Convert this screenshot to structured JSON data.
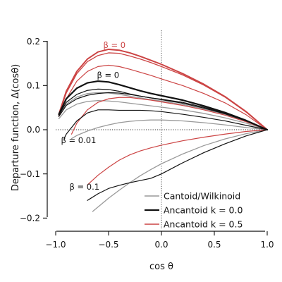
{
  "chart_data": {
    "type": "line",
    "xlabel": "cos θ",
    "ylabel": "Departure function, Δ(cosθ)",
    "xlim": [
      -1.08,
      1.08
    ],
    "ylim": [
      -0.225,
      0.225
    ],
    "xticks": [
      -1.0,
      -0.5,
      0.0,
      0.5,
      1.0
    ],
    "xtick_labels": [
      "−1.0",
      "−0.5",
      "0.0",
      "0.5",
      "1.0"
    ],
    "yticks": [
      -0.2,
      -0.1,
      0.0,
      0.1,
      0.2
    ],
    "ytick_labels": [
      "−0.2",
      "−0.1",
      "0.0",
      "0.1",
      "0.2"
    ],
    "reference_lines": {
      "y": 0.0,
      "x": 0.0,
      "style": "dotted"
    },
    "legend": {
      "position": "lower-right",
      "entries": [
        {
          "label": "Cantoid/Wilkinoid",
          "color": "#999999",
          "width": 1.6
        },
        {
          "label": "Ancantoid k = 0.0",
          "color": "#111111",
          "width": 2.2
        },
        {
          "label": "Ancantoid k = 0.5",
          "color": "#cc4444",
          "width": 1.6
        }
      ]
    },
    "annotations": [
      {
        "text": "β = 0",
        "x": -0.55,
        "y": 0.185,
        "color": "#cc4444"
      },
      {
        "text": "β = 0",
        "x": -0.61,
        "y": 0.117,
        "color": "#111111"
      },
      {
        "text": "β = 0.01",
        "x": -0.95,
        "y": -0.03,
        "color": "#111111"
      },
      {
        "text": "β = 0.1",
        "x": -0.87,
        "y": -0.136,
        "color": "#111111"
      }
    ],
    "series": [
      {
        "color": "#cc4444",
        "width": 2.0,
        "x": [
          -0.97,
          -0.9,
          -0.8,
          -0.7,
          -0.6,
          -0.5,
          -0.4,
          -0.3,
          -0.2,
          -0.1,
          0.0,
          0.2,
          0.4,
          0.6,
          0.8,
          1.0
        ],
        "y": [
          0.035,
          0.087,
          0.132,
          0.16,
          0.176,
          0.182,
          0.18,
          0.174,
          0.166,
          0.157,
          0.148,
          0.127,
          0.103,
          0.075,
          0.041,
          0.0
        ]
      },
      {
        "color": "#cc4444",
        "width": 1.3,
        "x": [
          -0.97,
          -0.9,
          -0.8,
          -0.7,
          -0.6,
          -0.5,
          -0.4,
          -0.3,
          -0.2,
          -0.1,
          0.0,
          0.2,
          0.4,
          0.6,
          0.8,
          1.0
        ],
        "y": [
          0.033,
          0.083,
          0.127,
          0.154,
          0.168,
          0.174,
          0.173,
          0.167,
          0.16,
          0.152,
          0.143,
          0.124,
          0.101,
          0.074,
          0.04,
          0.0
        ]
      },
      {
        "color": "#cc4444",
        "width": 1.2,
        "x": [
          -0.97,
          -0.9,
          -0.8,
          -0.7,
          -0.6,
          -0.5,
          -0.4,
          -0.3,
          -0.2,
          -0.1,
          0.0,
          0.2,
          0.4,
          0.6,
          0.8,
          1.0
        ],
        "y": [
          0.03,
          0.07,
          0.11,
          0.132,
          0.143,
          0.146,
          0.143,
          0.137,
          0.13,
          0.123,
          0.115,
          0.1,
          0.082,
          0.061,
          0.034,
          0.0
        ]
      },
      {
        "color": "#cc4444",
        "width": 1.2,
        "x": [
          -0.85,
          -0.8,
          -0.7,
          -0.6,
          -0.5,
          -0.4,
          -0.3,
          -0.2,
          -0.1,
          0.0,
          0.2,
          0.4,
          0.6,
          0.8,
          1.0
        ],
        "y": [
          -0.01,
          0.015,
          0.045,
          0.062,
          0.07,
          0.073,
          0.073,
          0.07,
          0.067,
          0.063,
          0.055,
          0.045,
          0.033,
          0.018,
          0.0
        ]
      },
      {
        "color": "#cc4444",
        "width": 1.2,
        "x": [
          -0.7,
          -0.6,
          -0.5,
          -0.4,
          -0.3,
          -0.2,
          -0.1,
          0.0,
          0.2,
          0.4,
          0.6,
          0.8,
          1.0
        ],
        "y": [
          -0.125,
          -0.103,
          -0.085,
          -0.069,
          -0.057,
          -0.048,
          -0.041,
          -0.035,
          -0.025,
          -0.017,
          -0.01,
          -0.004,
          0.0
        ]
      },
      {
        "color": "#111111",
        "width": 2.2,
        "x": [
          -0.97,
          -0.9,
          -0.8,
          -0.7,
          -0.6,
          -0.5,
          -0.4,
          -0.3,
          -0.2,
          -0.1,
          0.0,
          0.2,
          0.4,
          0.6,
          0.8,
          1.0
        ],
        "y": [
          0.035,
          0.07,
          0.094,
          0.106,
          0.11,
          0.108,
          0.102,
          0.095,
          0.088,
          0.082,
          0.077,
          0.067,
          0.054,
          0.039,
          0.021,
          0.0
        ]
      },
      {
        "color": "#111111",
        "width": 1.2,
        "x": [
          -0.97,
          -0.9,
          -0.8,
          -0.7,
          -0.6,
          -0.5,
          -0.4,
          -0.3,
          -0.2,
          -0.1,
          0.0,
          0.2,
          0.4,
          0.6,
          0.8,
          1.0
        ],
        "y": [
          0.033,
          0.062,
          0.08,
          0.089,
          0.092,
          0.091,
          0.087,
          0.081,
          0.076,
          0.072,
          0.069,
          0.062,
          0.051,
          0.037,
          0.02,
          0.0
        ]
      },
      {
        "color": "#111111",
        "width": 1.2,
        "x": [
          -0.97,
          -0.9,
          -0.8,
          -0.7,
          -0.6,
          -0.5,
          -0.4,
          -0.3,
          -0.2,
          -0.1,
          0.0,
          0.2,
          0.4,
          0.6,
          0.8,
          1.0
        ],
        "y": [
          0.03,
          0.055,
          0.07,
          0.078,
          0.082,
          0.084,
          0.083,
          0.08,
          0.076,
          0.072,
          0.068,
          0.06,
          0.049,
          0.036,
          0.02,
          0.0
        ]
      },
      {
        "color": "#111111",
        "width": 1.2,
        "x": [
          -0.92,
          -0.9,
          -0.8,
          -0.7,
          -0.6,
          -0.5,
          -0.4,
          -0.3,
          -0.2,
          -0.1,
          0.0,
          0.2,
          0.4,
          0.6,
          0.8,
          1.0
        ],
        "y": [
          -0.02,
          -0.01,
          0.02,
          0.038,
          0.045,
          0.045,
          0.044,
          0.044,
          0.044,
          0.043,
          0.041,
          0.035,
          0.028,
          0.02,
          0.01,
          0.0
        ]
      },
      {
        "color": "#111111",
        "width": 1.2,
        "x": [
          -0.7,
          -0.6,
          -0.5,
          -0.4,
          -0.3,
          -0.2,
          -0.1,
          0.0,
          0.2,
          0.4,
          0.6,
          0.8,
          1.0
        ],
        "y": [
          -0.16,
          -0.145,
          -0.133,
          -0.126,
          -0.12,
          -0.115,
          -0.11,
          -0.1,
          -0.075,
          -0.052,
          -0.032,
          -0.014,
          0.0
        ]
      },
      {
        "color": "#999999",
        "width": 1.3,
        "x": [
          -0.97,
          -0.9,
          -0.8,
          -0.7,
          -0.6,
          -0.5,
          -0.4,
          -0.3,
          -0.2,
          -0.1,
          0.0,
          0.2,
          0.4,
          0.6,
          0.8,
          1.0
        ],
        "y": [
          0.032,
          0.058,
          0.074,
          0.082,
          0.084,
          0.083,
          0.08,
          0.076,
          0.072,
          0.068,
          0.065,
          0.057,
          0.047,
          0.035,
          0.019,
          0.0
        ]
      },
      {
        "color": "#999999",
        "width": 1.3,
        "x": [
          -0.97,
          -0.9,
          -0.8,
          -0.7,
          -0.6,
          -0.5,
          -0.4,
          -0.3,
          -0.2,
          -0.1,
          0.0,
          0.2,
          0.4,
          0.6,
          0.8,
          1.0
        ],
        "y": [
          0.025,
          0.045,
          0.058,
          0.064,
          0.066,
          0.065,
          0.063,
          0.06,
          0.057,
          0.054,
          0.051,
          0.045,
          0.037,
          0.027,
          0.015,
          0.0
        ]
      },
      {
        "color": "#999999",
        "width": 1.3,
        "x": [
          -0.85,
          -0.8,
          -0.7,
          -0.6,
          -0.5,
          -0.4,
          -0.3,
          -0.2,
          -0.1,
          0.0,
          0.2,
          0.4,
          0.6,
          0.8,
          1.0
        ],
        "y": [
          -0.02,
          -0.013,
          -0.003,
          0.005,
          0.011,
          0.016,
          0.019,
          0.021,
          0.022,
          0.022,
          0.02,
          0.016,
          0.011,
          0.005,
          0.0
        ]
      },
      {
        "color": "#999999",
        "width": 1.3,
        "x": [
          -0.65,
          -0.6,
          -0.5,
          -0.4,
          -0.3,
          -0.2,
          -0.1,
          0.0,
          0.2,
          0.4,
          0.6,
          0.8,
          1.0
        ],
        "y": [
          -0.185,
          -0.175,
          -0.155,
          -0.137,
          -0.12,
          -0.104,
          -0.09,
          -0.077,
          -0.055,
          -0.036,
          -0.021,
          -0.009,
          0.0
        ]
      }
    ]
  }
}
